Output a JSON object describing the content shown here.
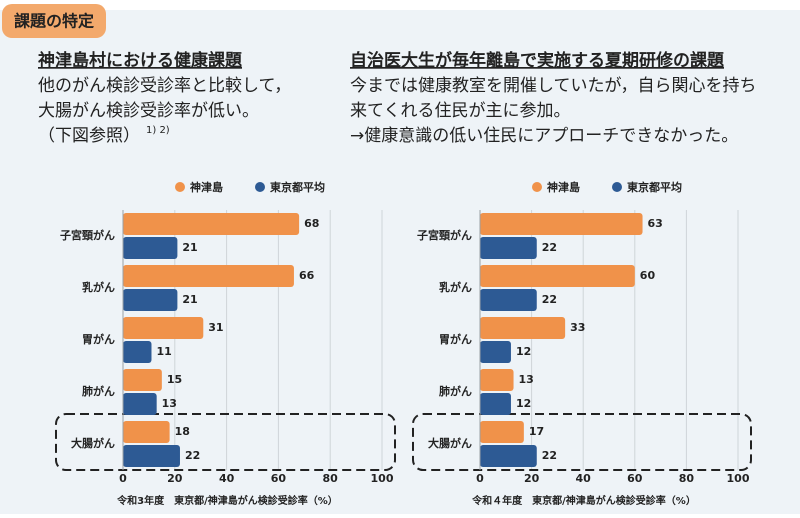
{
  "header": {
    "tag": "課題の特定"
  },
  "left_text": {
    "heading": "神津島村における健康課題",
    "lines": [
      "他のがん検診受診率と比較して，",
      "大腸がん検診受診率が低い。",
      "（下図参照）"
    ],
    "note": "1) 2)"
  },
  "right_text": {
    "heading": "自治医大生が毎年離島で実施する夏期研修の課題",
    "lines": [
      "今までは健康教室を開催していたが，自ら関心を持ち",
      "来てくれる住民が主に参加。",
      "→健康意識の低い住民にアプローチできなかった。"
    ]
  },
  "chart_data": [
    {
      "type": "bar",
      "orientation": "horizontal",
      "categories": [
        "子宮頸がん",
        "乳がん",
        "胃がん",
        "肺がん",
        "大腸がん"
      ],
      "series": [
        {
          "name": "神津島",
          "color": "#f0924a",
          "values": [
            68,
            66,
            31,
            15,
            18
          ]
        },
        {
          "name": "東京都平均",
          "color": "#2d5a94",
          "values": [
            21,
            21,
            11,
            13,
            22
          ]
        }
      ],
      "xlim": [
        0,
        100
      ],
      "xticks": [
        0,
        20,
        40,
        60,
        80,
        100
      ],
      "grid": true,
      "xlabel": "令和3年度　東京都/神津島がん検診受診率（%）"
    },
    {
      "type": "bar",
      "orientation": "horizontal",
      "categories": [
        "子宮頸がん",
        "乳がん",
        "胃がん",
        "肺がん",
        "大腸がん"
      ],
      "series": [
        {
          "name": "神津島",
          "color": "#f0924a",
          "values": [
            63,
            60,
            33,
            13,
            17
          ]
        },
        {
          "name": "東京都平均",
          "color": "#2d5a94",
          "values": [
            22,
            22,
            12,
            12,
            22
          ]
        }
      ],
      "xlim": [
        0,
        100
      ],
      "xticks": [
        0,
        20,
        40,
        60,
        80,
        100
      ],
      "grid": true,
      "xlabel": "令和４年度　東京都/神津島がん検診受診率（%）"
    }
  ]
}
